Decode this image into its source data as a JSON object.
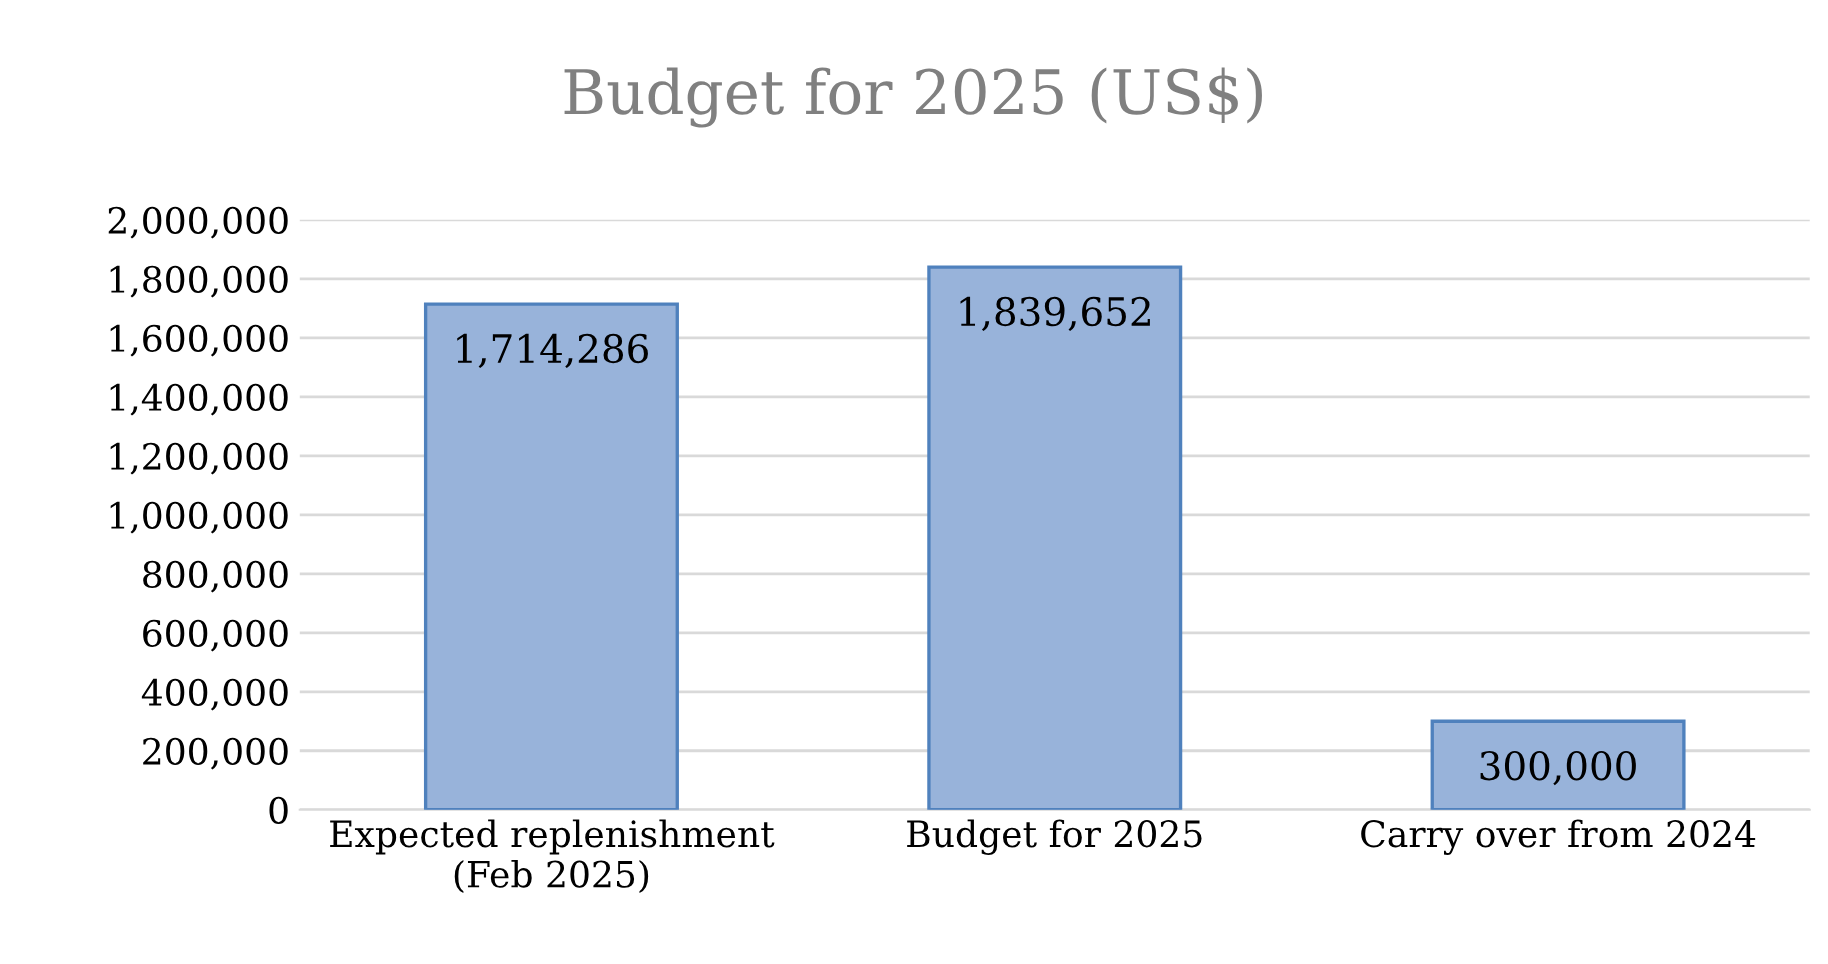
{
  "chart_data": {
    "type": "bar",
    "title": "Budget for 2025 (US$)",
    "categories": [
      "Expected replenishment\n(Feb 2025)",
      "Budget for 2025",
      "Carry over from 2024"
    ],
    "values": [
      1714286,
      1839652,
      300000
    ],
    "value_labels": [
      "1,714,286",
      "1,839,652",
      "300,000"
    ],
    "color": "#98b3da",
    "ylim": [
      0,
      2000000
    ],
    "yticks": [
      {
        "value": 0,
        "label": "0"
      },
      {
        "value": 200000,
        "label": "200,000"
      },
      {
        "value": 400000,
        "label": "400,000"
      },
      {
        "value": 600000,
        "label": "600,000"
      },
      {
        "value": 800000,
        "label": "800,000"
      },
      {
        "value": 1000000,
        "label": "1,000,000"
      },
      {
        "value": 1200000,
        "label": "1,200,000"
      },
      {
        "value": 1400000,
        "label": "1,400,000"
      },
      {
        "value": 1600000,
        "label": "1,600,000"
      },
      {
        "value": 1800000,
        "label": "1,800,000"
      },
      {
        "value": 2000000,
        "label": "2,000,000"
      }
    ],
    "grid": "y",
    "legend": false
  }
}
